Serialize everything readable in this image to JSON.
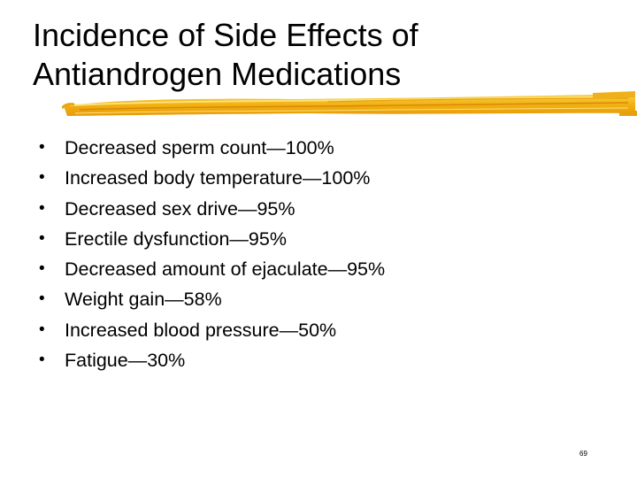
{
  "slide": {
    "title_line1": "Incidence of Side Effects of",
    "title_line2": "Antiandrogen Medications",
    "accent_color": "#f5b915",
    "bullets": [
      "Decreased sperm count—100%",
      "Increased body temperature—100%",
      "Decreased sex drive—95%",
      "Erectile dysfunction—95%",
      "Decreased amount of ejaculate—95%",
      "Weight gain—58%",
      "Increased blood pressure—50%",
      "Fatigue—30%"
    ],
    "page_number": "69"
  }
}
